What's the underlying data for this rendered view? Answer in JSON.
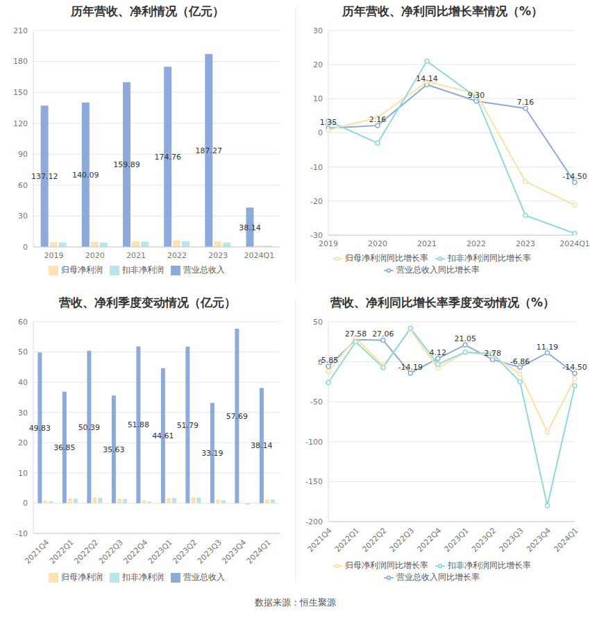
{
  "chart_data": [
    {
      "type": "bar",
      "title": "历年营收、净利情况（亿元）",
      "categories": [
        "2019",
        "2020",
        "2021",
        "2022",
        "2023",
        "2024Q1"
      ],
      "ylim": [
        0,
        210
      ],
      "yticks": [
        0,
        30,
        60,
        90,
        120,
        150,
        180,
        210
      ],
      "grid": true,
      "legend": "bottom",
      "series": [
        {
          "name": "营业总收入",
          "color": "#8eaadb",
          "values": [
            137.12,
            140.09,
            159.89,
            174.76,
            187.27,
            38.14
          ],
          "data_labels": true
        },
        {
          "name": "归母净利润",
          "color": "#fde3b4",
          "values": [
            4.8,
            5.0,
            5.7,
            6.3,
            5.4,
            1.3
          ]
        },
        {
          "name": "扣非净利润",
          "color": "#b8e6ea",
          "values": [
            4.3,
            4.2,
            5.1,
            5.6,
            4.3,
            1.2
          ]
        }
      ]
    },
    {
      "type": "line",
      "title": "历年营收、净利同比增长率情况（%）",
      "categories": [
        "2019",
        "2020",
        "2021",
        "2022",
        "2023",
        "2024Q1"
      ],
      "ylim": [
        -30,
        30
      ],
      "yticks": [
        -30,
        -20,
        -10,
        0,
        10,
        20,
        30
      ],
      "grid": true,
      "legend": "bottom",
      "series": [
        {
          "name": "营业总收入同比增长率",
          "color": "#8eaadb",
          "marker": "circle",
          "values": [
            1.35,
            2.16,
            14.14,
            9.3,
            7.16,
            -14.5
          ],
          "value_labels": [
            "1.35",
            "2.16",
            "14.14",
            "9.30",
            "7.16",
            "-14.50"
          ],
          "data_labels": true
        },
        {
          "name": "归母净利润同比增长率",
          "color": "#fde0a6",
          "marker": "circle",
          "values": [
            0.8,
            4.5,
            15,
            11.5,
            -14.3,
            -21.2
          ]
        },
        {
          "name": "扣非净利润同比增长率",
          "color": "#8fd9dc",
          "marker": "circle",
          "values": [
            3.5,
            -3,
            21,
            10.5,
            -24.2,
            -29.5
          ]
        }
      ]
    },
    {
      "type": "bar",
      "title": "营收、净利季度变动情况（亿元）",
      "categories": [
        "2021Q4",
        "2022Q1",
        "2022Q2",
        "2022Q3",
        "2022Q4",
        "2023Q1",
        "2023Q2",
        "2023Q3",
        "2023Q4",
        "2024Q1"
      ],
      "ylim": [
        -10,
        60
      ],
      "yticks": [
        -10,
        0,
        10,
        20,
        30,
        40,
        50,
        60
      ],
      "grid": true,
      "legend": "bottom",
      "series": [
        {
          "name": "营业总收入",
          "color": "#8eaadb",
          "values": [
            49.83,
            36.85,
            50.39,
            35.63,
            51.88,
            44.61,
            51.79,
            33.19,
            57.69,
            38.14
          ],
          "data_labels": true
        },
        {
          "name": "归母净利润",
          "color": "#fde3b4",
          "values": [
            0.9,
            1.6,
            1.9,
            1.5,
            0.9,
            1.7,
            2.0,
            1.2,
            0.1,
            1.3
          ]
        },
        {
          "name": "扣非净利润",
          "color": "#b8e6ea",
          "values": [
            0.6,
            1.5,
            1.8,
            1.4,
            0.5,
            1.7,
            1.9,
            1.0,
            -0.5,
            1.2
          ]
        }
      ]
    },
    {
      "type": "line",
      "title": "营收、净利同比增长率季度变动情况（%）",
      "categories": [
        "2021Q4",
        "2022Q1",
        "2022Q2",
        "2022Q3",
        "2022Q4",
        "2023Q1",
        "2023Q2",
        "2023Q3",
        "2023Q4",
        "2024Q1"
      ],
      "ylim": [
        -200,
        50
      ],
      "yticks": [
        -200,
        -150,
        -100,
        -50,
        0,
        50
      ],
      "grid": true,
      "legend": "bottom",
      "series": [
        {
          "name": "营业总收入同比增长率",
          "color": "#8eaadb",
          "marker": "circle",
          "values": [
            -5.85,
            27.58,
            27.06,
            -14.19,
            4.12,
            21.05,
            2.78,
            -6.86,
            11.19,
            -14.5
          ],
          "value_labels": [
            "-5.85",
            "27.58",
            "27.06",
            "-14.19",
            "4.12",
            "21.05",
            "2.78",
            "-6.86",
            "11.19",
            "-14.50"
          ],
          "data_labels": true
        },
        {
          "name": "归母净利润同比增长率",
          "color": "#fde0a6",
          "marker": "circle",
          "values": [
            -12,
            30,
            -5,
            40,
            -8,
            12,
            8,
            -15,
            -88,
            -21
          ]
        },
        {
          "name": "扣非净利润同比增长率",
          "color": "#8fd9dc",
          "marker": "circle",
          "values": [
            -26,
            25,
            -7,
            42,
            -3,
            12,
            10,
            -25,
            -180,
            -30
          ]
        }
      ]
    }
  ],
  "source": "数据来源：恒生聚源"
}
